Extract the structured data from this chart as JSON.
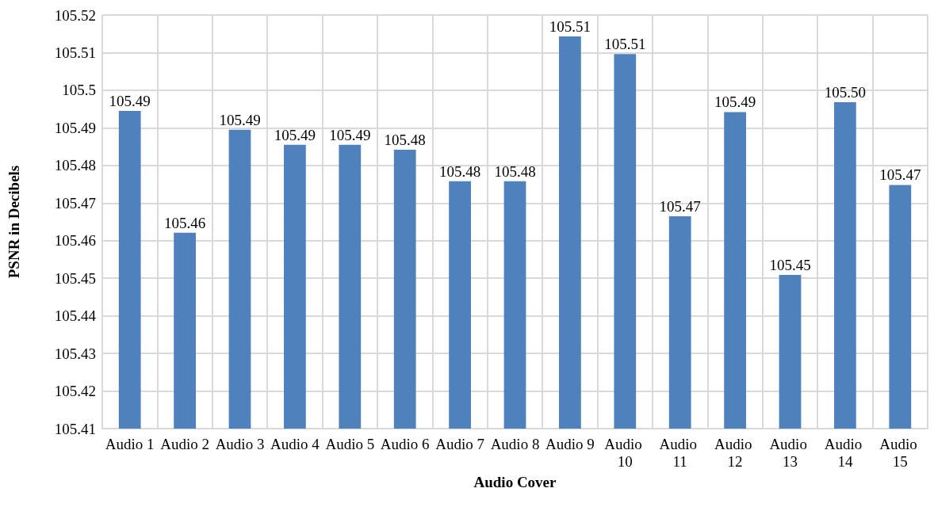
{
  "chart_data": {
    "type": "bar",
    "xlabel": "Audio Cover",
    "ylabel": "PSNR in Decibels",
    "categories": [
      "Audio 1",
      "Audio 2",
      "Audio 3",
      "Audio 4",
      "Audio 5",
      "Audio 6",
      "Audio 7",
      "Audio 8",
      "Audio 9",
      "Audio 10",
      "Audio 11",
      "Audio 12",
      "Audio 13",
      "Audio 14",
      "Audio 15"
    ],
    "values": [
      105.4945,
      105.4621,
      105.4895,
      105.4855,
      105.4855,
      105.4842,
      105.4758,
      105.4758,
      105.5143,
      105.5096,
      105.4665,
      105.4942,
      105.4509,
      105.4968,
      105.4748
    ],
    "value_labels": [
      "105.49",
      "105.46",
      "105.49",
      "105.49",
      "105.49",
      "105.48",
      "105.48",
      "105.48",
      "105.51",
      "105.51",
      "105.47",
      "105.49",
      "105.45",
      "105.50",
      "105.47"
    ],
    "color": "#4f81bd",
    "ylim": [
      105.41,
      105.52
    ],
    "yticks": [
      105.41,
      105.42,
      105.43,
      105.44,
      105.45,
      105.46,
      105.47,
      105.48,
      105.49,
      105.5,
      105.51,
      105.52
    ],
    "grid": true
  }
}
